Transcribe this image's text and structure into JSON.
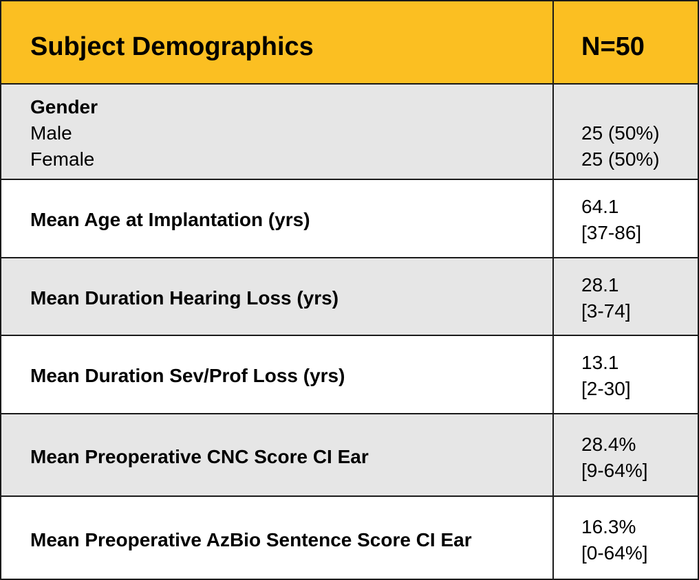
{
  "table": {
    "header": {
      "title": "Subject Demographics",
      "count": "N=50"
    },
    "gender": {
      "label": "Gender",
      "male_label": "Male",
      "female_label": "Female",
      "male_value": "25 (50%)",
      "female_value": "25 (50%)"
    },
    "rows": [
      {
        "label": "Mean Age at Implantation (yrs)",
        "mean": "64.1",
        "range": "[37-86]"
      },
      {
        "label": "Mean Duration Hearing Loss (yrs)",
        "mean": "28.1",
        "range": "[3-74]"
      },
      {
        "label": "Mean Duration Sev/Prof Loss (yrs)",
        "mean": "13.1",
        "range": "[2-30]"
      },
      {
        "label": "Mean Preoperative CNC Score CI Ear",
        "mean": "28.4%",
        "range": "[9-64%]"
      },
      {
        "label": "Mean Preoperative AzBio Sentence Score CI Ear",
        "mean": "16.3%",
        "range": "[0-64%]"
      }
    ],
    "colors": {
      "header_bg": "#fbbf22",
      "shaded_row_bg": "#e6e6e6",
      "plain_row_bg": "#ffffff",
      "border": "#1a1a1a"
    }
  }
}
